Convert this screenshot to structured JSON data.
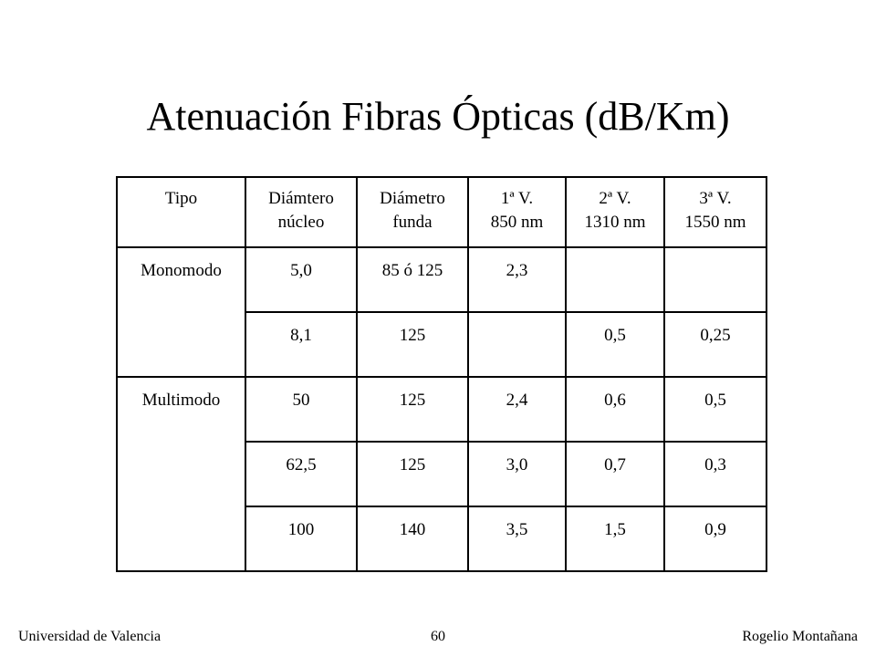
{
  "title": "Atenuación Fibras Ópticas (dB/Km)",
  "table": {
    "header": [
      "Tipo",
      "Diámtero\nnúcleo",
      "Diámetro\nfunda",
      "1ª V.\n850 nm",
      "2ª V.\n1310 nm",
      "3ª V.\n1550 nm"
    ],
    "groups": [
      {
        "tipo": "Monomodo",
        "rows": [
          [
            "5,0",
            "85 ó 125",
            "2,3",
            null,
            null
          ],
          [
            "8,1",
            "125",
            null,
            "0,5",
            "0,25"
          ]
        ]
      },
      {
        "tipo": "Multimodo",
        "rows": [
          [
            "50",
            "125",
            "2,4",
            "0,6",
            "0,5"
          ],
          [
            "62,5",
            "125",
            "3,0",
            "0,7",
            "0,3"
          ],
          [
            "100",
            "140",
            "3,5",
            "1,5",
            "0,9"
          ]
        ]
      }
    ]
  },
  "footer": {
    "left": "Universidad de Valencia",
    "center": "60",
    "right": "Rogelio Montañana"
  }
}
